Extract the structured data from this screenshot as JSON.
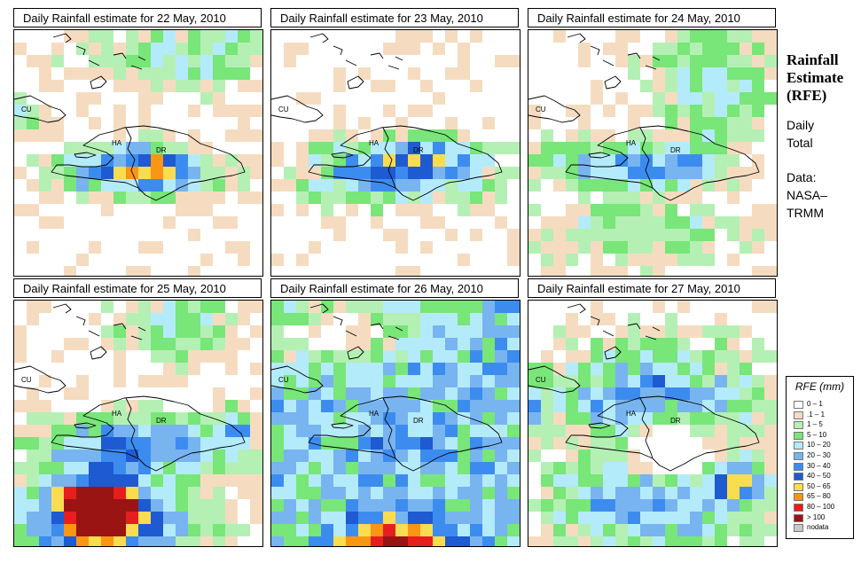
{
  "panels": [
    {
      "title": "Daily Rainfall estimate for  22 May, 2010",
      "day": 22
    },
    {
      "title": "Daily Rainfall estimate for  23 May, 2010",
      "day": 23
    },
    {
      "title": "Daily Rainfall estimate for  24 May, 2010",
      "day": 24
    },
    {
      "title": "Daily Rainfall estimate for  25 May, 2010",
      "day": 25
    },
    {
      "title": "Daily Rainfall estimate for  26 May, 2010",
      "day": 26
    },
    {
      "title": "Daily Rainfall estimate for  27 May, 2010",
      "day": 27
    }
  ],
  "map_labels": {
    "cuba": "CU",
    "haiti": "HA",
    "dominican_republic": "DR"
  },
  "side": {
    "title_line1": "Rainfall",
    "title_line2": "Estimate",
    "title_line3": "(RFE)",
    "period_line1": "Daily",
    "period_line2": "Total",
    "source_line1": "Data:",
    "source_line2": "NASA–",
    "source_line3": "TRMM"
  },
  "legend": {
    "title": "RFE (mm)",
    "items": [
      {
        "label": "0 – 1",
        "color": "#ffffff"
      },
      {
        "label": ".1 – 1",
        "color": "#f5dcc0"
      },
      {
        "label": "1 – 5",
        "color": "#b4f0b4"
      },
      {
        "label": "5 – 10",
        "color": "#78e678"
      },
      {
        "label": "10 – 20",
        "color": "#b4ebfa"
      },
      {
        "label": "20 – 30",
        "color": "#78b4f0"
      },
      {
        "label": "30 – 40",
        "color": "#3c8cf0"
      },
      {
        "label": "40 – 50",
        "color": "#1e5ad2"
      },
      {
        "label": "50 – 65",
        "color": "#fadc50"
      },
      {
        "label": "65 – 80",
        "color": "#fa9614"
      },
      {
        "label": "80 – 100",
        "color": "#e61e1e"
      },
      {
        "label": "> 100",
        "color": "#9b1414"
      },
      {
        "label": "nodata",
        "color": "#c8c8c8"
      }
    ]
  }
}
